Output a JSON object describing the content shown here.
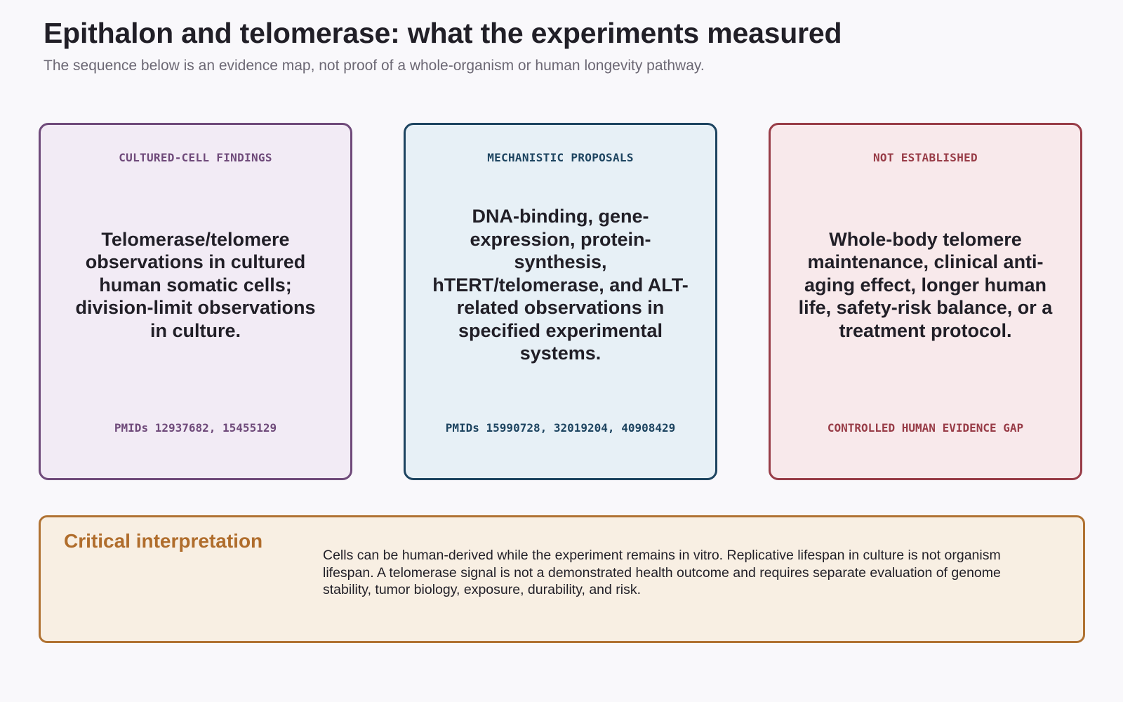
{
  "header": {
    "title": "Epithalon and telomerase: what the experiments measured",
    "subtitle": "The sequence below is an evidence map, not proof of a whole-organism or human longevity pathway."
  },
  "cards": [
    {
      "kicker": "CULTURED-CELL FINDINGS",
      "body": "Telomerase/telomere observations in cultured human somatic cells; division-limit observations in culture.",
      "footer": "PMIDs 12937682, 15455129",
      "color": "#6f4a7a"
    },
    {
      "kicker": "MECHANISTIC PROPOSALS",
      "body": "DNA-binding, gene-expression, protein-synthesis, hTERT/telomerase, and ALT-related observations in specified experimental systems.",
      "footer": "PMIDs 15990728, 32019204, 40908429",
      "color": "#1d4460"
    },
    {
      "kicker": "NOT ESTABLISHED",
      "body": "Whole-body telomere maintenance, clinical anti-aging effect, longer human life, safety-risk balance, or a treatment protocol.",
      "footer": "CONTROLLED HUMAN EVIDENCE GAP",
      "color": "#983c47"
    }
  ],
  "interpretation": {
    "title": "Critical interpretation",
    "text": "Cells can be human-derived while the experiment remains in vitro. Replicative lifespan in culture is not organism lifespan. A telomerase signal is not a demonstrated health outcome and requires separate evaluation of genome stability, tumor biology, exposure, durability, and risk.",
    "color": "#b07232"
  }
}
